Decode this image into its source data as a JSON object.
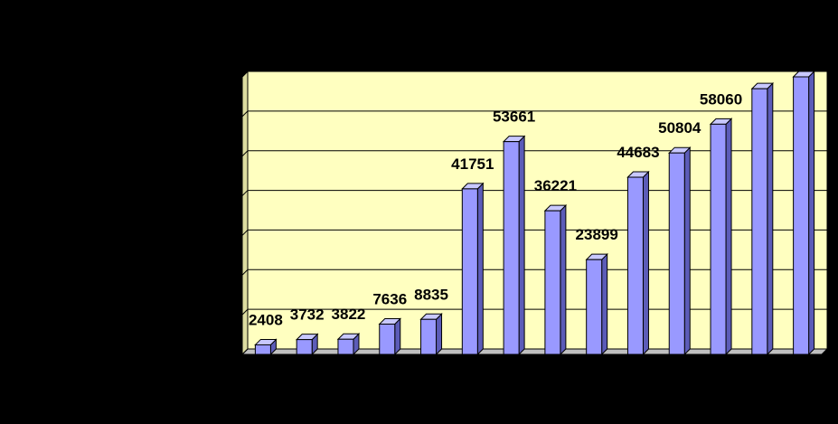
{
  "chart_data": {
    "type": "bar3d",
    "categories": [
      null,
      null,
      null,
      null,
      null,
      null,
      null,
      null,
      null,
      null,
      null,
      null,
      null,
      null
    ],
    "values": [
      2408,
      3732,
      3822,
      7636,
      8835,
      41751,
      53661,
      36221,
      23899,
      44683,
      50804,
      58060,
      67000,
      70000
    ],
    "value_labels": [
      "2408",
      "3732",
      "3822",
      "7636",
      "8835",
      "41751",
      "53661",
      "36221",
      "23899",
      "44683",
      "50804",
      "58060",
      null,
      null
    ],
    "color": "#9999ff",
    "ylim": [
      0,
      70000
    ],
    "yticks": [
      0,
      10000,
      20000,
      30000,
      40000,
      50000,
      60000,
      70000
    ],
    "grid": true
  }
}
